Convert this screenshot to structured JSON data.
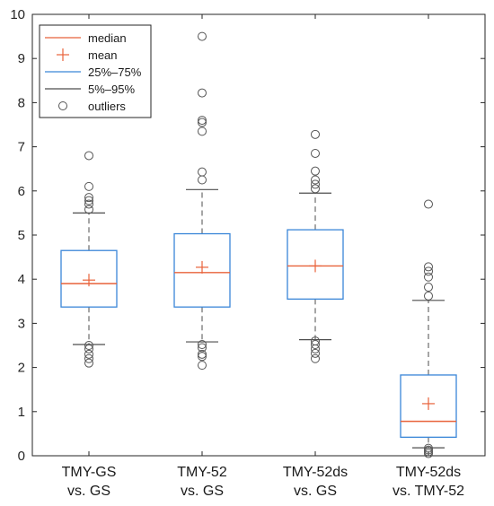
{
  "chart_data": {
    "type": "box",
    "ylim": [
      0,
      10
    ],
    "yticks": [
      "0",
      "1",
      "2",
      "3",
      "4",
      "5",
      "6",
      "7",
      "8",
      "9",
      "10"
    ],
    "grid": false,
    "legend_position": "top-left",
    "legend": [
      {
        "key": "median",
        "label": "median",
        "symbol": "line",
        "color": "#e8623a"
      },
      {
        "key": "mean",
        "label": "mean",
        "symbol": "plus",
        "color": "#e8623a"
      },
      {
        "key": "iqr",
        "label": "25%–75%",
        "symbol": "line",
        "color": "#3a86d8"
      },
      {
        "key": "whisker",
        "label": "5%–95%",
        "symbol": "line",
        "color": "#4d4d4d"
      },
      {
        "key": "outliers",
        "label": "outliers",
        "symbol": "circle",
        "color": "#555555"
      }
    ],
    "categories": [
      {
        "line1": "TMY-GS",
        "line2": "vs. GS"
      },
      {
        "line1": "TMY-52",
        "line2": "vs. GS"
      },
      {
        "line1": "TMY-52ds",
        "line2": "vs. GS"
      },
      {
        "line1": "TMY-52ds",
        "line2": "vs. TMY-52"
      }
    ],
    "boxes": [
      {
        "q1": 3.37,
        "median": 3.9,
        "q3": 4.65,
        "mean": 3.98,
        "p5": 2.52,
        "p95": 5.5,
        "outliers": [
          2.1,
          2.2,
          2.3,
          2.42,
          2.5,
          5.58,
          5.7,
          5.78,
          5.85,
          6.1,
          6.8
        ]
      },
      {
        "q1": 3.37,
        "median": 4.15,
        "q3": 5.03,
        "mean": 4.27,
        "p5": 2.58,
        "p95": 6.03,
        "outliers": [
          2.05,
          2.25,
          2.3,
          2.45,
          2.52,
          6.25,
          6.43,
          7.35,
          7.55,
          7.6,
          8.22,
          9.5
        ]
      },
      {
        "q1": 3.55,
        "median": 4.3,
        "q3": 5.12,
        "mean": 4.3,
        "p5": 2.63,
        "p95": 5.95,
        "outliers": [
          2.2,
          2.32,
          2.42,
          2.52,
          2.6,
          6.05,
          6.15,
          6.25,
          6.45,
          6.85,
          7.28
        ]
      },
      {
        "q1": 0.42,
        "median": 0.78,
        "q3": 1.83,
        "mean": 1.18,
        "p5": 0.18,
        "p95": 3.52,
        "outliers": [
          0.05,
          0.09,
          0.13,
          0.17,
          3.62,
          3.82,
          4.05,
          4.18,
          4.28,
          5.7
        ]
      }
    ],
    "colors": {
      "box": "#3a86d8",
      "median": "#e8623a",
      "mean": "#e8623a",
      "whisker": "#4d4d4d",
      "outlier": "#555555",
      "axis": "#262626"
    }
  }
}
